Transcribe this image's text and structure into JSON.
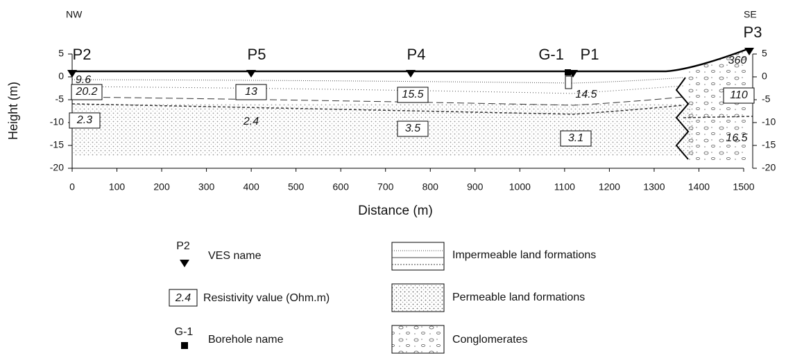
{
  "header": {
    "left": "NW",
    "right": "SE"
  },
  "axes": {
    "x_label": "Distance (m)",
    "y_label": "Height (m)",
    "x_ticks": [
      0,
      100,
      200,
      300,
      400,
      500,
      600,
      700,
      800,
      900,
      1000,
      1100,
      1200,
      1300,
      1400,
      1500
    ],
    "y_ticks_left": [
      5,
      0,
      -5,
      -10,
      -15,
      -20
    ],
    "y_ticks_right": [
      5,
      0,
      -5,
      -10,
      -15,
      -20
    ]
  },
  "ves": [
    "P2",
    "P5",
    "P4",
    "P1",
    "P3"
  ],
  "borehole": "G-1",
  "resistivity": [
    "9.6",
    "20.2",
    "2.3",
    "13",
    "2.4",
    "15.5",
    "3.5",
    "14.5",
    "3.1",
    "360",
    "110",
    "16.5"
  ],
  "legend": [
    {
      "symbol": "P2",
      "label": "VES name"
    },
    {
      "symbol": "2.4",
      "label": "Resistivity value (Ohm.m)"
    },
    {
      "symbol": "G-1",
      "label": "Borehole name"
    },
    {
      "label": "Impermeable land formations"
    },
    {
      "label": "Permeable land formations"
    },
    {
      "label": "Conglomerates"
    }
  ]
}
